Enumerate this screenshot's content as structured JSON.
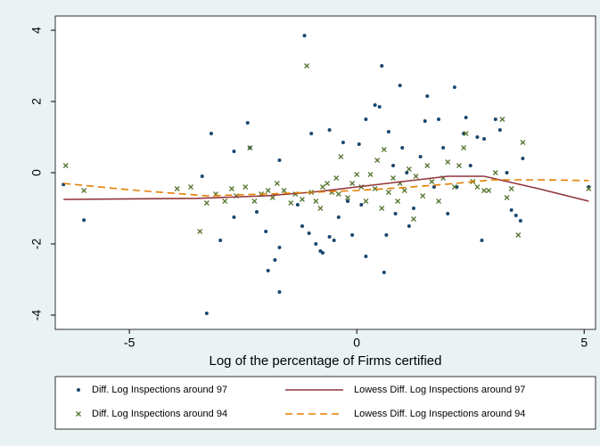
{
  "chart_data": {
    "type": "scatter",
    "xlabel": "Log of the percentage of Firms certified",
    "xlim": [
      -6.63,
      5.25
    ],
    "ylim": [
      -4.4,
      4.4
    ],
    "xticks": [
      -5,
      0,
      5
    ],
    "yticks": [
      -4,
      -2,
      0,
      2,
      4
    ],
    "grid": false,
    "series": [
      {
        "name": "Diff. Log Inspections around 97",
        "color": "#1a476f",
        "marker": "dot",
        "x": [
          -6.45,
          -6.0,
          -3.4,
          -3.2,
          -3.0,
          -3.3,
          -2.7,
          -2.7,
          -2.4,
          -2.35,
          -2.2,
          -2.0,
          -1.95,
          -1.8,
          -1.7,
          -1.7,
          -1.7,
          -1.15,
          -1.3,
          -1.2,
          -1.05,
          -1.0,
          -0.9,
          -0.8,
          -0.75,
          -0.6,
          -0.6,
          -0.5,
          -0.4,
          -0.3,
          -0.2,
          -0.1,
          0.05,
          0.1,
          0.2,
          0.2,
          0.4,
          0.5,
          0.55,
          0.6,
          0.65,
          0.7,
          0.8,
          0.85,
          0.95,
          1.0,
          1.1,
          1.15,
          1.25,
          1.4,
          1.5,
          1.55,
          1.7,
          1.8,
          1.9,
          2.0,
          2.15,
          2.2,
          2.35,
          2.4,
          2.5,
          2.65,
          2.75,
          2.8,
          3.05,
          3.15,
          3.3,
          3.4,
          3.5,
          3.6,
          3.65,
          5.1
        ],
        "values": [
          -0.33,
          -1.33,
          -0.1,
          1.1,
          -1.9,
          -3.95,
          0.6,
          -1.25,
          1.4,
          0.7,
          -1.1,
          -1.65,
          -2.75,
          -2.45,
          -3.35,
          -2.1,
          0.35,
          3.85,
          -0.9,
          -1.5,
          -1.7,
          1.1,
          -2.0,
          -2.2,
          -2.25,
          1.2,
          -1.8,
          -1.9,
          -1.25,
          0.85,
          -0.8,
          -1.75,
          0.8,
          -0.9,
          -2.35,
          1.5,
          1.9,
          1.85,
          3.0,
          -2.8,
          -1.75,
          1.15,
          0.2,
          -1.15,
          2.45,
          0.7,
          0,
          -1.5,
          -1.0,
          0.45,
          1.45,
          2.15,
          -0.4,
          1.5,
          0.7,
          -1.15,
          2.4,
          -0.4,
          1.1,
          1.55,
          0.2,
          1.0,
          -1.9,
          0.95,
          1.5,
          1.2,
          0,
          -1.05,
          -1.2,
          -1.35,
          0.4,
          -0.4
        ]
      },
      {
        "name": "Diff. Log Inspections around 94",
        "color": "#55752f",
        "marker": "x",
        "x": [
          -6.4,
          -6.0,
          -3.95,
          -3.65,
          -3.45,
          -3.3,
          -3.1,
          -2.9,
          -2.75,
          -2.65,
          -2.45,
          -2.35,
          -2.25,
          -2.1,
          -1.95,
          -1.85,
          -1.75,
          -1.6,
          -1.45,
          -1.35,
          -1.2,
          -1.1,
          -1.0,
          -0.9,
          -0.8,
          -0.75,
          -0.65,
          -0.55,
          -0.45,
          -0.4,
          -0.35,
          -0.2,
          -0.1,
          0,
          0.1,
          0.2,
          0.3,
          0.4,
          0.45,
          0.55,
          0.6,
          0.7,
          0.8,
          0.9,
          0.95,
          1.05,
          1.15,
          1.25,
          1.3,
          1.45,
          1.55,
          1.65,
          1.8,
          1.9,
          2.0,
          2.15,
          2.25,
          2.35,
          2.4,
          2.55,
          2.65,
          2.8,
          2.9,
          3.05,
          3.2,
          3.3,
          3.4,
          3.55,
          3.65,
          5.1
        ],
        "values": [
          0.2,
          -0.5,
          -0.45,
          -0.4,
          -1.65,
          -0.85,
          -0.6,
          -0.8,
          -0.45,
          -0.65,
          -0.4,
          0.7,
          -0.8,
          -0.6,
          -0.5,
          -0.7,
          -0.3,
          -0.5,
          -0.85,
          -0.6,
          -0.75,
          3.0,
          -0.55,
          -0.8,
          -1.0,
          -0.4,
          -0.3,
          -0.55,
          -0.15,
          -0.6,
          0.45,
          -0.7,
          -0.3,
          -0.05,
          -0.4,
          -0.8,
          -0.05,
          -0.45,
          0.35,
          -1.0,
          0.65,
          -0.55,
          -0.15,
          -0.8,
          -0.3,
          -0.5,
          0.1,
          -1.3,
          -0.1,
          -0.65,
          0.2,
          -0.25,
          -0.8,
          -0.15,
          0.3,
          -0.4,
          0.2,
          0.7,
          1.1,
          -0.25,
          -0.4,
          -0.5,
          -0.5,
          0,
          1.5,
          -0.7,
          -0.45,
          -1.75,
          0.85,
          -0.45
        ]
      },
      {
        "name": "Lowess Diff. Log Inspections around 97",
        "color": "#90353b",
        "marker": "line",
        "dash": "solid",
        "x": [
          -6.45,
          -3.5,
          -2,
          -1,
          0,
          1,
          2,
          2.8,
          4,
          5.1
        ],
        "values": [
          -0.75,
          -0.72,
          -0.65,
          -0.55,
          -0.4,
          -0.25,
          -0.1,
          -0.1,
          -0.45,
          -0.8
        ]
      },
      {
        "name": "Lowess Diff. Log Inspections around 94",
        "color": "#e37e00",
        "marker": "line",
        "dash": "dashed",
        "x": [
          -6.45,
          -5,
          -3.3,
          -2,
          -1,
          0,
          1,
          2,
          3,
          4,
          5.1
        ],
        "values": [
          -0.3,
          -0.48,
          -0.65,
          -0.6,
          -0.55,
          -0.5,
          -0.42,
          -0.32,
          -0.2,
          -0.2,
          -0.22
        ]
      }
    ]
  }
}
